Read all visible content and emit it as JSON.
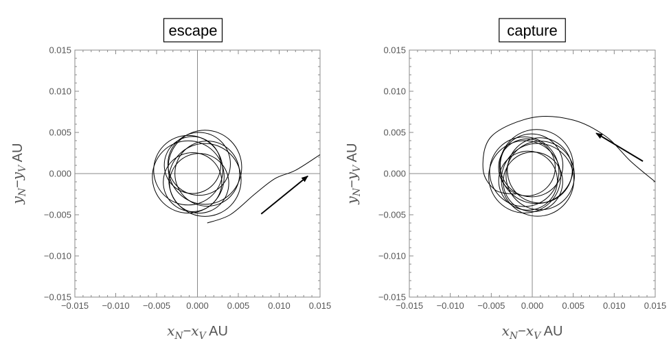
{
  "chart_data": [
    {
      "type": "line",
      "title": "escape",
      "xlabel": {
        "var1": "x",
        "sub1": "N",
        "sep": "−",
        "var2": "x",
        "sub2": "V",
        "unit": "AU"
      },
      "ylabel": {
        "var1": "y",
        "sub1": "N",
        "sep": "−",
        "var2": "y",
        "sub2": "V",
        "unit": "AU"
      },
      "xlim": [
        -0.015,
        0.015
      ],
      "ylim": [
        -0.015,
        0.015
      ],
      "ticks": [
        "−0.015",
        "−0.010",
        "−0.005",
        "0.000",
        "0.005",
        "0.010",
        "0.015"
      ],
      "tick_values": [
        -0.015,
        -0.01,
        -0.005,
        0,
        0.005,
        0.01,
        0.015
      ],
      "grid": false,
      "origin_lines": true,
      "series_color": "#000000",
      "loops": {
        "count": 9,
        "radius": 0.0045,
        "center_radius": 0.0012
      },
      "tail": {
        "x": [
          0.0012,
          0.004,
          0.007,
          0.0095,
          0.012,
          0.015
        ],
        "y": [
          -0.006,
          -0.005,
          -0.0025,
          -0.0006,
          0.0004,
          0.0023
        ]
      },
      "arrow": {
        "from": [
          0.0078,
          -0.0049
        ],
        "to": [
          0.0135,
          -0.0003
        ]
      }
    },
    {
      "type": "line",
      "title": "capture",
      "xlabel": {
        "var1": "x",
        "sub1": "N",
        "sep": "−",
        "var2": "x",
        "sub2": "V",
        "unit": "AU"
      },
      "ylabel": {
        "var1": "y",
        "sub1": "N",
        "sep": "−",
        "var2": "y",
        "sub2": "V",
        "unit": "AU"
      },
      "xlim": [
        -0.015,
        0.015
      ],
      "ylim": [
        -0.015,
        0.015
      ],
      "ticks": [
        "−0.015",
        "−0.010",
        "−0.005",
        "0.000",
        "0.005",
        "0.010",
        "0.015"
      ],
      "tick_values": [
        -0.015,
        -0.01,
        -0.005,
        0,
        0.005,
        0.01,
        0.015
      ],
      "grid": false,
      "origin_lines": true,
      "series_color": "#000000",
      "loops": {
        "count": 10,
        "radius": 0.0045,
        "center_radius": 0.001
      },
      "tail": {
        "x": [
          0.015,
          0.012,
          0.009,
          0.005,
          0.0,
          -0.005,
          -0.006,
          -0.0045,
          -0.002
        ],
        "y": [
          -0.001,
          0.0015,
          0.0045,
          0.0065,
          0.0068,
          0.0045,
          0.0005,
          -0.002,
          -0.0025
        ]
      },
      "arrow": {
        "from": [
          0.0135,
          0.0015
        ],
        "to": [
          0.0078,
          0.0049
        ]
      }
    }
  ]
}
